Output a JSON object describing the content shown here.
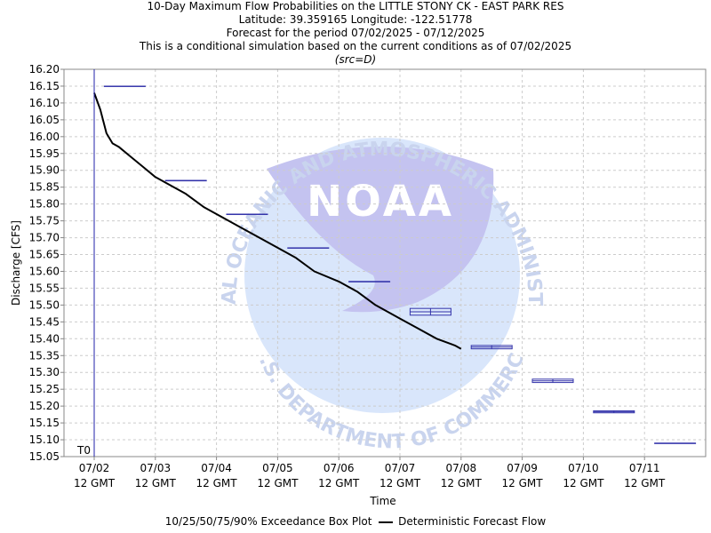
{
  "title": {
    "line1": "10-Day Maximum Flow Probabilities on the LITTLE STONY CK - EAST PARK RES",
    "line2": "Latitude: 39.359165 Longitude: -122.51778",
    "line3": "Forecast for the period 07/02/2025 - 07/12/2025",
    "line4": "This is a conditional simulation based on the current conditions as of 07/02/2025",
    "source": "(src=D)"
  },
  "watermark": {
    "logo_text": "NOAA",
    "ring_top": "NATIONAL OCEANIC AND ATMOSPHERIC ADMINISTRATION",
    "ring_bottom": "U.S. DEPARTMENT OF COMMERCE"
  },
  "legend": {
    "box_label": "10/25/50/75/90% Exceedance Box Plot",
    "line_label": "Deterministic Forecast Flow"
  },
  "t0_label": "T0",
  "chart_data": {
    "type": "line",
    "xlabel": "Time",
    "ylabel": "Discharge [CFS]",
    "ylim": [
      15.05,
      16.2
    ],
    "y_ticks": [
      15.05,
      15.1,
      15.15,
      15.2,
      15.25,
      15.3,
      15.35,
      15.4,
      15.45,
      15.5,
      15.55,
      15.6,
      15.65,
      15.7,
      15.75,
      15.8,
      15.85,
      15.9,
      15.95,
      16.0,
      16.05,
      16.1,
      16.15,
      16.2
    ],
    "x_ticks": [
      {
        "day": 0,
        "date": "07/02",
        "time": "12 GMT"
      },
      {
        "day": 1,
        "date": "07/03",
        "time": "12 GMT"
      },
      {
        "day": 2,
        "date": "07/04",
        "time": "12 GMT"
      },
      {
        "day": 3,
        "date": "07/05",
        "time": "12 GMT"
      },
      {
        "day": 4,
        "date": "07/06",
        "time": "12 GMT"
      },
      {
        "day": 5,
        "date": "07/07",
        "time": "12 GMT"
      },
      {
        "day": 6,
        "date": "07/08",
        "time": "12 GMT"
      },
      {
        "day": 7,
        "date": "07/09",
        "time": "12 GMT"
      },
      {
        "day": 8,
        "date": "07/10",
        "time": "12 GMT"
      },
      {
        "day": 9,
        "date": "07/11",
        "time": "12 GMT"
      }
    ],
    "grid": true,
    "legend_position": "bottom",
    "t0_day": 0,
    "boxes": [
      {
        "day": 0.5,
        "p10": 16.15,
        "p25": 16.15,
        "p50": 16.15,
        "p75": 16.15,
        "p90": 16.15
      },
      {
        "day": 1.5,
        "p10": 15.87,
        "p25": 15.87,
        "p50": 15.87,
        "p75": 15.87,
        "p90": 15.87
      },
      {
        "day": 2.5,
        "p10": 15.77,
        "p25": 15.77,
        "p50": 15.77,
        "p75": 15.77,
        "p90": 15.77
      },
      {
        "day": 3.5,
        "p10": 15.67,
        "p25": 15.67,
        "p50": 15.67,
        "p75": 15.67,
        "p90": 15.67
      },
      {
        "day": 4.5,
        "p10": 15.57,
        "p25": 15.57,
        "p50": 15.57,
        "p75": 15.57,
        "p90": 15.57
      },
      {
        "day": 5.5,
        "p10": 15.47,
        "p25": 15.47,
        "p50": 15.48,
        "p75": 15.49,
        "p90": 15.49
      },
      {
        "day": 6.5,
        "p10": 15.37,
        "p25": 15.37,
        "p50": 15.375,
        "p75": 15.38,
        "p90": 15.38
      },
      {
        "day": 7.5,
        "p10": 15.27,
        "p25": 15.27,
        "p50": 15.275,
        "p75": 15.28,
        "p90": 15.28
      },
      {
        "day": 8.5,
        "p10": 15.18,
        "p25": 15.18,
        "p50": 15.183,
        "p75": 15.186,
        "p90": 15.186
      },
      {
        "day": 9.5,
        "p10": 15.09,
        "p25": 15.09,
        "p50": 15.09,
        "p75": 15.09,
        "p90": 15.09
      }
    ],
    "deterministic": {
      "name": "Deterministic Forecast Flow",
      "x": [
        0.0,
        0.1,
        0.2,
        0.3,
        0.4,
        0.6,
        0.8,
        1.0,
        1.2,
        1.5,
        1.8,
        2.0,
        2.3,
        2.6,
        3.0,
        3.3,
        3.6,
        4.0,
        4.3,
        4.6,
        5.0,
        5.3,
        5.6,
        5.9,
        6.0
      ],
      "y": [
        16.13,
        16.08,
        16.01,
        15.98,
        15.97,
        15.94,
        15.91,
        15.88,
        15.86,
        15.83,
        15.79,
        15.77,
        15.74,
        15.71,
        15.67,
        15.64,
        15.6,
        15.57,
        15.54,
        15.5,
        15.46,
        15.43,
        15.4,
        15.38,
        15.37
      ]
    }
  }
}
